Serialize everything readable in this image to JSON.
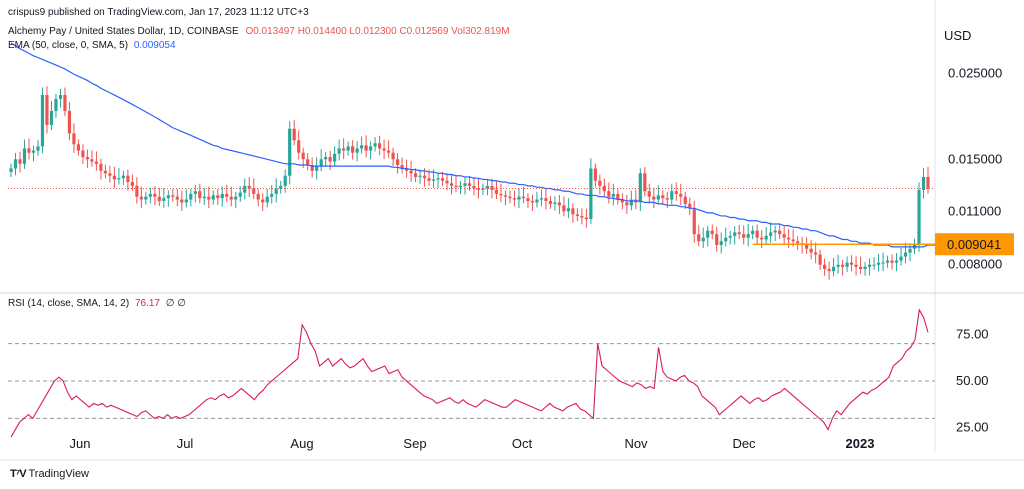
{
  "header": {
    "published": "crispus9 published on TradingView.com, Jan 17, 2023 11:12 UTC+3",
    "symbol": "Alchemy Pay / United States Dollar, 1D, COINBASE",
    "ohlc": "O0.013497  H0.014400  L0.012300  C0.012569  Vol302.819M",
    "ema_label": "EMA (50, close, 0, SMA, 5)",
    "ema_value": "0.009054",
    "rsi_label": "RSI (14, close, SMA, 14, 2)",
    "rsi_value": "76.17",
    "rsi_extra": "∅  ∅",
    "currency": "USD"
  },
  "footer": {
    "brand": "TradingView"
  },
  "colors": {
    "up": "#26a69a",
    "down": "#ef5350",
    "ema": "#2962ff",
    "rsi": "#d81b60",
    "price_tag": "#ff9800",
    "annotation_line": "#ff9800"
  },
  "chart_data": [
    {
      "type": "candlestick",
      "title": "Alchemy Pay / United States Dollar, 1D, COINBASE",
      "x_tick_labels": [
        "Jun",
        "Jul",
        "Aug",
        "Sep",
        "Oct",
        "Nov",
        "Dec",
        "2023"
      ],
      "y_tick_labels": [
        "0.025000",
        "0.015000",
        "0.011000",
        "0.008000"
      ],
      "y_scale": "log",
      "ylim": [
        0.0068,
        0.034
      ],
      "price_tag": "0.009041",
      "annotation_level": 0.009041,
      "closes": [
        0.0142,
        0.015,
        0.0146,
        0.016,
        0.0156,
        0.0158,
        0.0162,
        0.022,
        0.0184,
        0.02,
        0.0215,
        0.022,
        0.02,
        0.0175,
        0.0164,
        0.0158,
        0.0152,
        0.015,
        0.0148,
        0.0146,
        0.014,
        0.0138,
        0.0136,
        0.0133,
        0.0134,
        0.0136,
        0.0131,
        0.0128,
        0.012,
        0.0118,
        0.012,
        0.0122,
        0.012,
        0.0117,
        0.0119,
        0.0121,
        0.012,
        0.0118,
        0.0116,
        0.0118,
        0.0122,
        0.0124,
        0.0119,
        0.012,
        0.0118,
        0.0121,
        0.0119,
        0.0122,
        0.012,
        0.0118,
        0.012,
        0.0123,
        0.0128,
        0.0126,
        0.0122,
        0.0118,
        0.0116,
        0.012,
        0.0122,
        0.0126,
        0.0128,
        0.0136,
        0.018,
        0.0168,
        0.0156,
        0.015,
        0.0145,
        0.014,
        0.0144,
        0.015,
        0.0152,
        0.0148,
        0.0155,
        0.016,
        0.0158,
        0.0162,
        0.0156,
        0.016,
        0.0163,
        0.0158,
        0.0162,
        0.0165,
        0.016,
        0.0158,
        0.0156,
        0.015,
        0.0145,
        0.0142,
        0.014,
        0.0138,
        0.0135,
        0.0136,
        0.0134,
        0.0132,
        0.0133,
        0.0134,
        0.0132,
        0.013,
        0.0128,
        0.0127,
        0.0128,
        0.013,
        0.0128,
        0.0126,
        0.0125,
        0.0126,
        0.0128,
        0.0125,
        0.0122,
        0.0121,
        0.012,
        0.0119,
        0.0118,
        0.012,
        0.0119,
        0.0117,
        0.0116,
        0.0118,
        0.0119,
        0.0117,
        0.0115,
        0.0116,
        0.0114,
        0.011,
        0.0112,
        0.0108,
        0.0107,
        0.0106,
        0.0105,
        0.0142,
        0.0132,
        0.0128,
        0.0124,
        0.012,
        0.0122,
        0.0118,
        0.0116,
        0.0114,
        0.0118,
        0.0116,
        0.0138,
        0.0124,
        0.012,
        0.0118,
        0.0121,
        0.0119,
        0.0118,
        0.0124,
        0.0122,
        0.012,
        0.0115,
        0.0112,
        0.0096,
        0.0092,
        0.0094,
        0.0098,
        0.0096,
        0.009,
        0.0092,
        0.0094,
        0.0095,
        0.0097,
        0.0096,
        0.0094,
        0.0096,
        0.0098,
        0.0094,
        0.0093,
        0.0095,
        0.0097,
        0.0098,
        0.0096,
        0.0094,
        0.0093,
        0.0092,
        0.0091,
        0.009,
        0.0088,
        0.0086,
        0.0085,
        0.008,
        0.0078,
        0.0077,
        0.0079,
        0.008,
        0.0079,
        0.0081,
        0.008,
        0.0079,
        0.0078,
        0.0079,
        0.008,
        0.008,
        0.0081,
        0.0081,
        0.0082,
        0.0081,
        0.0082,
        0.0084,
        0.0086,
        0.0088,
        0.009,
        0.0125,
        0.0135,
        0.0126
      ],
      "ema": [
        0.03,
        0.0295,
        0.029,
        0.0286,
        0.0282,
        0.0278,
        0.0275,
        0.0272,
        0.0269,
        0.0266,
        0.0263,
        0.026,
        0.0257,
        0.0253,
        0.0249,
        0.0246,
        0.0243,
        0.024,
        0.0236,
        0.0233,
        0.0229,
        0.0226,
        0.0223,
        0.022,
        0.0217,
        0.0214,
        0.0211,
        0.0208,
        0.0205,
        0.0202,
        0.0199,
        0.0196,
        0.0193,
        0.019,
        0.0187,
        0.0184,
        0.0181,
        0.0179,
        0.0177,
        0.0175,
        0.0173,
        0.0171,
        0.0169,
        0.0167,
        0.0165,
        0.0163,
        0.0162,
        0.016,
        0.0159,
        0.0158,
        0.0157,
        0.0156,
        0.0155,
        0.0154,
        0.0153,
        0.0152,
        0.0151,
        0.015,
        0.0149,
        0.0148,
        0.0147,
        0.0146,
        0.0146,
        0.0146,
        0.0145,
        0.0145,
        0.0145,
        0.0144,
        0.0144,
        0.0144,
        0.0144,
        0.0144,
        0.0144,
        0.0144,
        0.0144,
        0.0144,
        0.0144,
        0.0144,
        0.0144,
        0.0144,
        0.0144,
        0.0144,
        0.0144,
        0.0144,
        0.0144,
        0.0143,
        0.0143,
        0.0142,
        0.0142,
        0.0141,
        0.0141,
        0.014,
        0.014,
        0.0139,
        0.0139,
        0.0138,
        0.0138,
        0.0137,
        0.0137,
        0.0136,
        0.0136,
        0.0135,
        0.0135,
        0.0134,
        0.0134,
        0.0133,
        0.0133,
        0.0132,
        0.0132,
        0.0131,
        0.0131,
        0.013,
        0.013,
        0.0129,
        0.0129,
        0.0128,
        0.0128,
        0.0127,
        0.0127,
        0.0126,
        0.0126,
        0.0125,
        0.0125,
        0.0124,
        0.0124,
        0.0123,
        0.0122,
        0.0122,
        0.0121,
        0.0121,
        0.0121,
        0.012,
        0.012,
        0.0119,
        0.0119,
        0.0118,
        0.0118,
        0.0117,
        0.0117,
        0.0117,
        0.0117,
        0.0116,
        0.0116,
        0.0116,
        0.0115,
        0.0115,
        0.0114,
        0.0114,
        0.0114,
        0.0113,
        0.0113,
        0.0112,
        0.0112,
        0.0111,
        0.011,
        0.0109,
        0.0109,
        0.0108,
        0.0107,
        0.0107,
        0.0106,
        0.0106,
        0.0105,
        0.0105,
        0.0104,
        0.0104,
        0.0104,
        0.0103,
        0.0103,
        0.0102,
        0.0102,
        0.0102,
        0.0101,
        0.0101,
        0.01,
        0.01,
        0.0099,
        0.0099,
        0.0098,
        0.0098,
        0.0097,
        0.0096,
        0.0095,
        0.0095,
        0.0094,
        0.0093,
        0.0093,
        0.0092,
        0.0092,
        0.0091,
        0.0091,
        0.0091,
        0.009,
        0.009,
        0.009,
        0.009,
        0.0089,
        0.0089,
        0.0089,
        0.0089,
        0.0089,
        0.0089,
        0.0089,
        0.0089,
        0.009,
        0.009,
        0.009
      ]
    },
    {
      "type": "line",
      "title": "RSI (14, close, SMA, 14, 2)",
      "y_tick_labels": [
        "75.00",
        "50.00",
        "25.00"
      ],
      "ylim": [
        12,
        96
      ],
      "bands": [
        70,
        50,
        30
      ],
      "values": [
        20,
        24,
        28,
        30,
        32,
        30,
        34,
        38,
        42,
        46,
        50,
        52,
        50,
        44,
        40,
        42,
        40,
        38,
        36,
        38,
        37,
        38,
        36,
        37,
        36,
        35,
        34,
        33,
        32,
        31,
        33,
        34,
        32,
        30,
        31,
        30,
        32,
        30,
        31,
        30,
        31,
        32,
        34,
        36,
        38,
        40,
        41,
        40,
        42,
        43,
        41,
        42,
        44,
        46,
        44,
        42,
        40,
        43,
        45,
        48,
        50,
        52,
        54,
        56,
        58,
        60,
        62,
        80,
        76,
        70,
        66,
        58,
        60,
        62,
        58,
        60,
        62,
        59,
        57,
        58,
        60,
        62,
        58,
        55,
        56,
        57,
        58,
        54,
        55,
        56,
        52,
        50,
        48,
        46,
        44,
        42,
        41,
        40,
        38,
        39,
        40,
        41,
        39,
        38,
        40,
        38,
        37,
        36,
        38,
        40,
        39,
        38,
        37,
        36,
        36,
        38,
        40,
        39,
        38,
        37,
        36,
        35,
        34,
        36,
        38,
        36,
        35,
        34,
        36,
        37,
        38,
        35,
        34,
        32,
        30,
        70,
        58,
        56,
        54,
        52,
        50,
        49,
        48,
        47,
        49,
        48,
        46,
        47,
        46,
        68,
        55,
        52,
        51,
        50,
        52,
        53,
        50,
        49,
        47,
        42,
        40,
        38,
        36,
        32,
        34,
        36,
        38,
        40,
        42,
        40,
        38,
        40,
        41,
        39,
        40,
        42,
        43,
        44,
        46,
        44,
        42,
        40,
        38,
        36,
        34,
        32,
        30,
        28,
        24,
        30,
        34,
        32,
        35,
        38,
        40,
        42,
        44,
        43,
        45,
        46,
        48,
        50,
        52,
        58,
        60,
        62,
        66,
        68,
        72,
        88,
        84,
        76
      ]
    }
  ]
}
